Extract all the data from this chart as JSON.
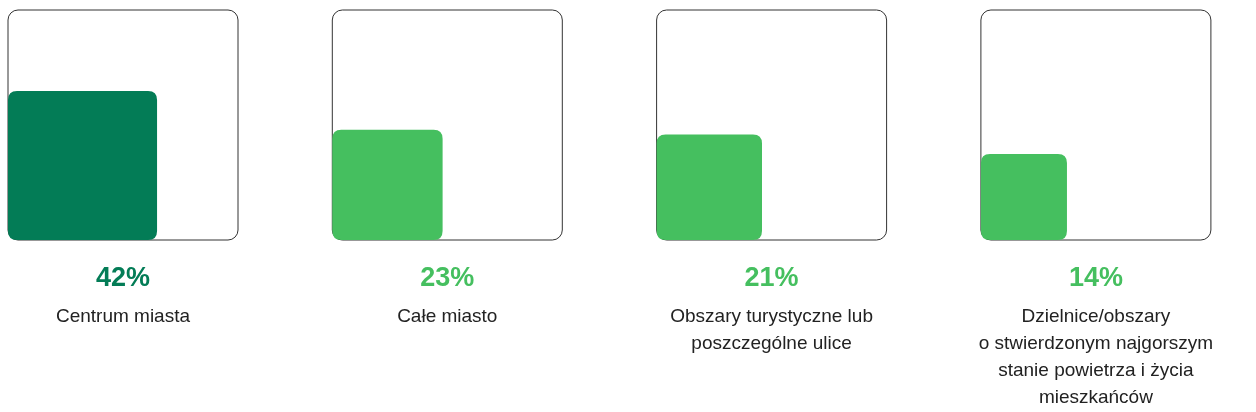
{
  "chart_data": {
    "type": "other",
    "categories": [
      "Centrum miasta",
      "Całe miasto",
      "Obszary turystyczne lub\nposzczególne ulice",
      "Dzielnice/obszary\no stwierdzonym najgorszym\nstanie powietrza i życia\nmieszkańców"
    ],
    "values": [
      42,
      23,
      21,
      14
    ],
    "value_labels": [
      "42%",
      "23%",
      "21%",
      "14%"
    ],
    "colors": [
      "#037c56",
      "#45bf5f",
      "#45bf5f",
      "#45bf5f"
    ]
  }
}
